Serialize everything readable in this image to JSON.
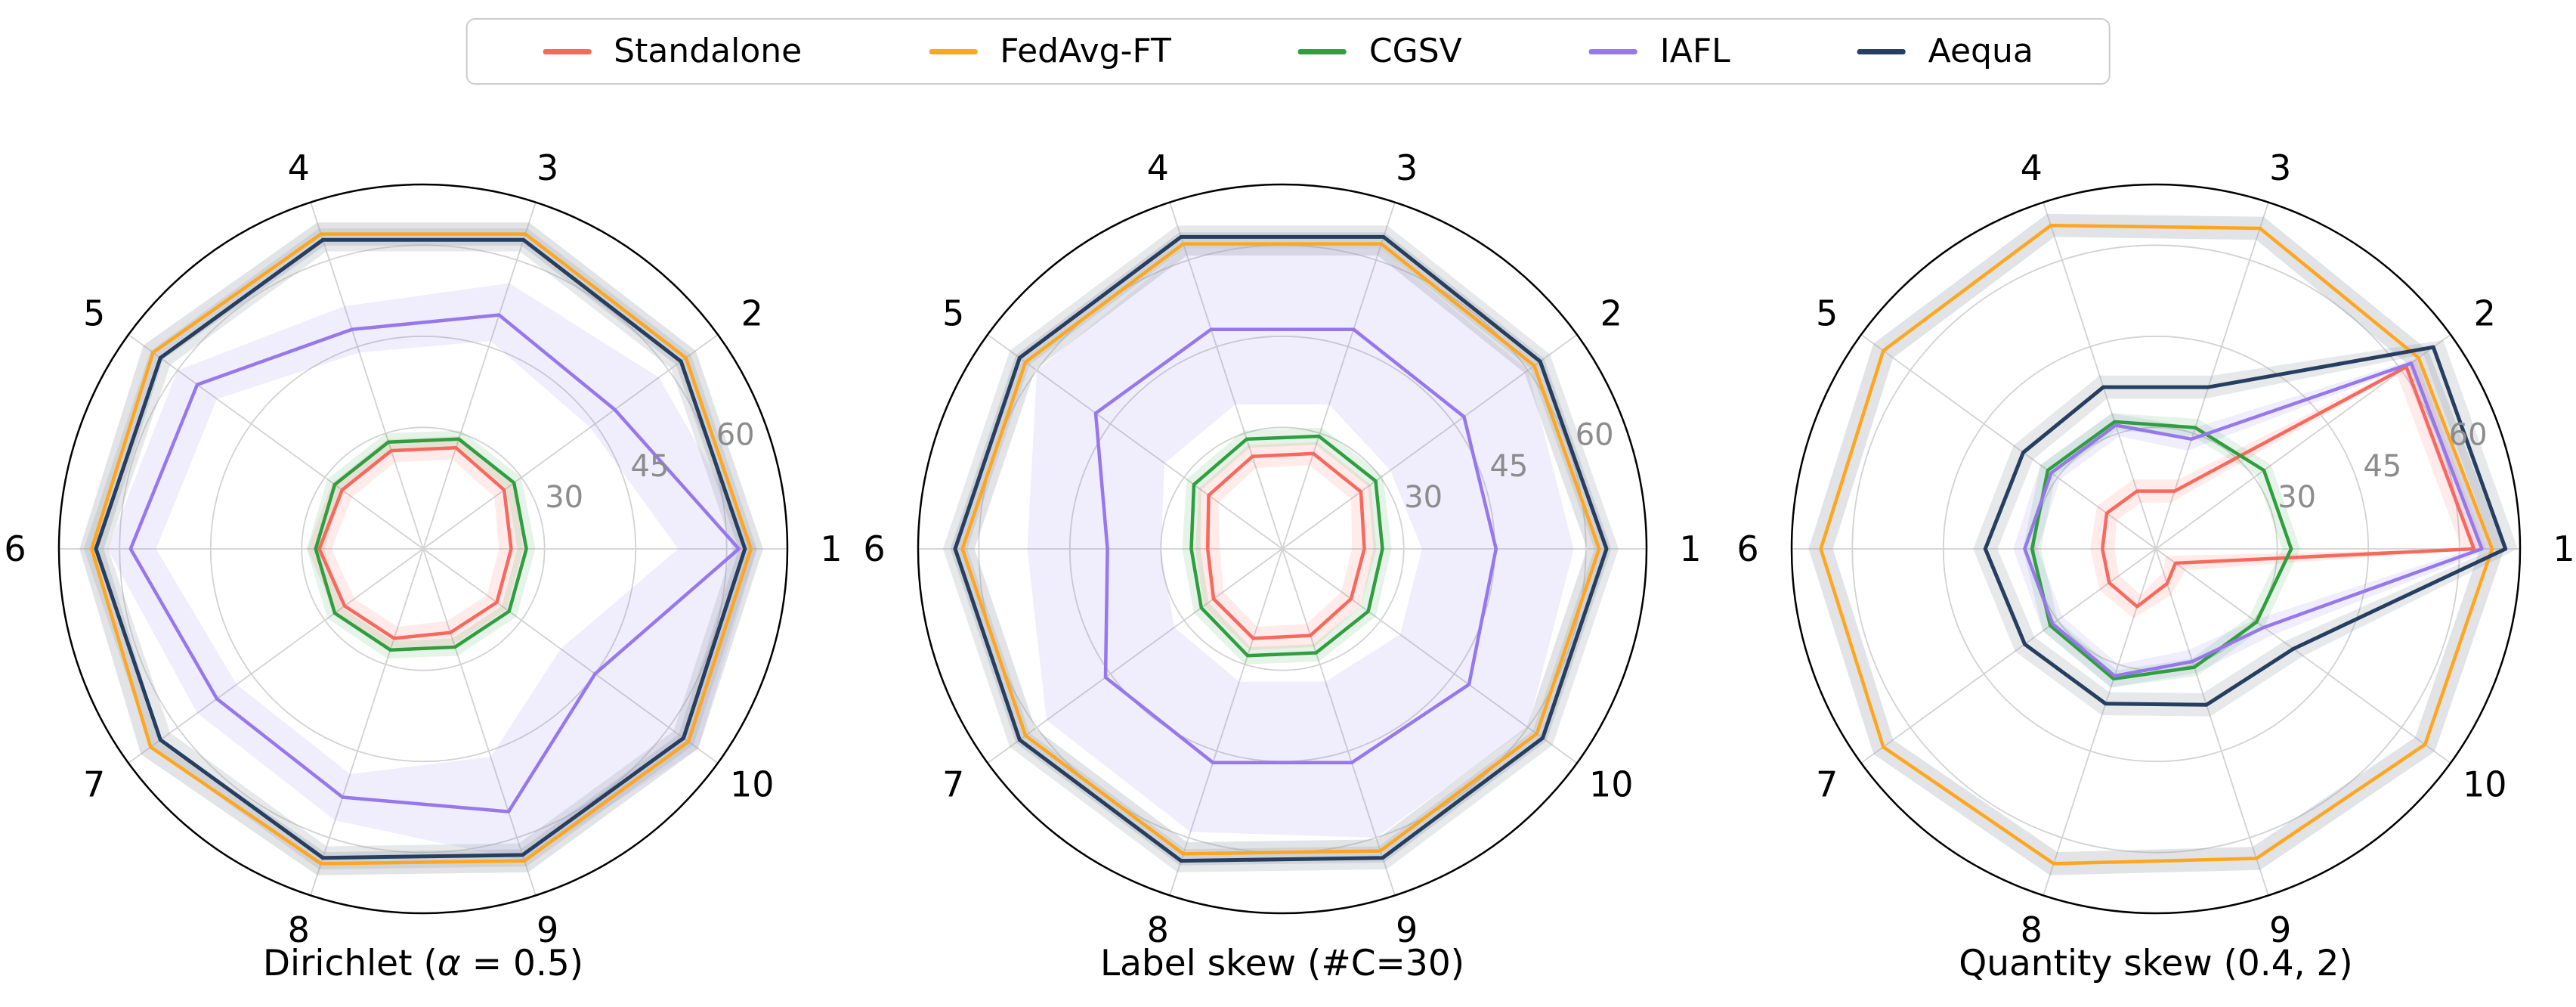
{
  "figure": {
    "background": "#ffffff",
    "kind": "radar-figure"
  },
  "legend": {
    "border_color": "#cccccc",
    "items": [
      {
        "label": "Standalone",
        "color": "#F8685C"
      },
      {
        "label": "FedAvg-FT",
        "color": "#FFA61E"
      },
      {
        "label": "CGSV",
        "color": "#2F9E3E"
      },
      {
        "label": "IAFL",
        "color": "#9678EC"
      },
      {
        "label": "Aequa",
        "color": "#263E60"
      }
    ]
  },
  "axis": {
    "rmin": 10,
    "rmax": 70,
    "ticks": [
      30,
      45,
      60
    ],
    "tick_label_angle_deg": 20,
    "tick_color": "#8C8C8C",
    "grid_color": "#D2D2D2",
    "outer_circle_color": "#000000",
    "spoke_labels": [
      "1",
      "2",
      "3",
      "4",
      "5",
      "6",
      "7",
      "8",
      "9",
      "10"
    ]
  },
  "series_meta": [
    {
      "label": "Standalone",
      "color": "#F8685C",
      "width": 4.5,
      "band_delta": 2,
      "band_color": "#F8685C",
      "band_opacity": 0.13
    },
    {
      "label": "FedAvg-FT",
      "color": "#FFA61E",
      "width": 4.5,
      "band_delta": 2,
      "band_color": "#9AA3AD",
      "band_opacity": 0.3
    },
    {
      "label": "CGSV",
      "color": "#2F9E3E",
      "width": 4.5,
      "band_delta": 1.5,
      "band_color": "#2F9E3E",
      "band_opacity": 0.12
    },
    {
      "label": "IAFL",
      "color": "#9678EC",
      "width": 4.5,
      "band_delta": 0,
      "band_color": "#8A75E6",
      "band_opacity": 0.0
    },
    {
      "label": "Aequa",
      "color": "#263E60",
      "width": 5,
      "band_delta": 2,
      "band_color": "#9AA3AD",
      "band_opacity": 0.25
    }
  ],
  "uncertainty_band_style": {
    "color": "#8A75E6",
    "opacity": 0.13
  },
  "chart_data": [
    {
      "type": "radar",
      "title": "Dirichlet (α = 0.5)",
      "title_pre": "Dirichlet (",
      "title_italic": "α",
      "title_post": " = 0.5)",
      "categories": [
        "1",
        "2",
        "3",
        "4",
        "5",
        "6",
        "7",
        "8",
        "9",
        "10"
      ],
      "ylim": [
        10,
        70
      ],
      "ticks": [
        30,
        45,
        60
      ],
      "series": [
        {
          "name": "Standalone",
          "values": [
            24.5,
            26.5,
            27.5,
            27,
            26.5,
            27.1,
            26,
            25.5,
            24.5,
            25
          ]
        },
        {
          "name": "FedAvg-FT",
          "values": [
            64,
            63.5,
            64.5,
            64.5,
            65,
            64.6,
            65.5,
            64.5,
            64,
            64
          ]
        },
        {
          "name": "CGSV",
          "values": [
            27,
            28.5,
            29,
            28.5,
            28,
            27.7,
            28,
            27.5,
            27,
            27.5
          ]
        },
        {
          "name": "IAFL",
          "values": [
            62,
            49,
            50.5,
            48,
            56,
            58.2,
            52,
            53,
            55.5,
            45
          ]
        },
        {
          "name": "Aequa",
          "values": [
            63,
            62.5,
            63.5,
            63.5,
            63.5,
            63.9,
            63.5,
            63.5,
            63,
            63
          ]
        }
      ],
      "uncertainty_band": {
        "series": "IAFL",
        "hi": [
          65,
          58,
          56,
          52,
          60,
          62,
          56,
          57,
          64,
          66
        ],
        "lo": [
          52,
          44,
          46,
          44,
          52,
          54,
          48,
          49,
          46,
          38
        ]
      }
    },
    {
      "type": "radar",
      "title": "Label skew (#C=30)",
      "title_pre": "Label skew (#C=30)",
      "title_italic": "",
      "title_post": "",
      "categories": [
        "1",
        "2",
        "3",
        "4",
        "5",
        "6",
        "7",
        "8",
        "9",
        "10"
      ],
      "ylim": [
        10,
        70
      ],
      "ticks": [
        30,
        45,
        60
      ],
      "series": [
        {
          "name": "Standalone",
          "values": [
            23.5,
            26,
            26.5,
            26,
            25,
            22.3,
            24,
            25.5,
            25,
            24
          ]
        },
        {
          "name": "FedAvg-FT",
          "values": [
            62.2,
            61.3,
            62.8,
            62.8,
            62.3,
            62.7,
            62.3,
            62.8,
            62.3,
            61.8
          ]
        },
        {
          "name": "CGSV",
          "values": [
            26.5,
            29,
            29.5,
            29,
            28,
            25,
            26.5,
            28.5,
            28,
            27.5
          ]
        },
        {
          "name": "IAFL",
          "values": [
            45.2,
            47,
            48,
            48,
            48,
            38.8,
            46,
            47,
            47,
            48
          ]
        },
        {
          "name": "Aequa",
          "values": [
            63.4,
            62.5,
            64,
            64,
            63.5,
            63.9,
            63.5,
            64,
            63.5,
            63
          ]
        }
      ],
      "uncertainty_band": {
        "series": "IAFL",
        "hi": [
          58,
          60,
          62,
          62,
          60,
          52,
          58,
          59,
          60,
          60
        ],
        "lo": [
          33,
          32,
          35,
          35,
          34,
          30,
          32,
          33,
          33,
          34
        ]
      }
    },
    {
      "type": "radar",
      "title": "Quantity skew (0.4, 2)",
      "title_pre": "Quantity skew (0.4, 2)",
      "title_italic": "",
      "title_post": "",
      "categories": [
        "1",
        "2",
        "3",
        "4",
        "5",
        "6",
        "7",
        "8",
        "9",
        "10"
      ],
      "ylim": [
        10,
        70
      ],
      "ticks": [
        30,
        45,
        60
      ],
      "series": [
        {
          "name": "Standalone",
          "values": [
            62.4,
            61,
            20,
            20,
            20,
            18.8,
            19.5,
            20,
            16,
            14
          ]
        },
        {
          "name": "FedAvg-FT",
          "values": [
            65.4,
            63.5,
            65.5,
            66,
            65.5,
            65.2,
            65.5,
            64.5,
            63.6,
            64.8
          ]
        },
        {
          "name": "CGSV",
          "values": [
            32.3,
            32,
            31,
            32,
            32,
            30.4,
            31.5,
            32.5,
            30.5,
            30.5
          ]
        },
        {
          "name": "IAFL",
          "values": [
            63.7,
            62,
            29,
            31.4,
            31.3,
            31.6,
            31,
            32,
            29.5,
            32
          ]
        },
        {
          "name": "Aequa",
          "values": [
            67.6,
            66.5,
            38,
            38,
            37,
            38.1,
            36.7,
            36.8,
            37,
            38
          ]
        }
      ],
      "uncertainty_band": {
        "series": "IAFL",
        "hi": [
          65.5,
          63.5,
          31,
          33.5,
          33.5,
          33.5,
          33,
          34,
          31.5,
          34
        ],
        "lo": [
          62,
          60.5,
          27,
          29.5,
          29.5,
          29.5,
          29,
          30,
          27.5,
          30
        ]
      }
    }
  ]
}
